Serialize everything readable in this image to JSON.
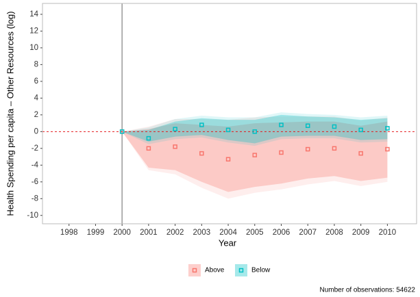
{
  "chart_data": {
    "type": "event-study",
    "y_label": "Health Spending per capita – Other Resources (log)",
    "x_label": "Year",
    "caption": "Number of observations: 54622",
    "x": [
      2000,
      2001,
      2002,
      2003,
      2004,
      2005,
      2006,
      2007,
      2008,
      2009,
      2010
    ],
    "xlim": [
      1997,
      2011.1
    ],
    "ylim": [
      -11,
      15.3
    ],
    "xticks": [
      1998,
      1999,
      2000,
      2001,
      2002,
      2003,
      2004,
      2005,
      2006,
      2007,
      2008,
      2009,
      2010
    ],
    "yticks": [
      -10,
      -8,
      -6,
      -4,
      -2,
      0,
      2,
      4,
      6,
      8,
      10,
      12,
      14
    ],
    "vline": 2000,
    "hline": 0,
    "grid": false,
    "legend": "bottom",
    "series": [
      {
        "name": "Above",
        "color": "#f8766d",
        "values": [
          0,
          -2.0,
          -1.8,
          -2.6,
          -3.3,
          -2.8,
          -2.5,
          -2.1,
          -2.0,
          -2.6,
          -2.1
        ],
        "ci_inner": {
          "lower": [
            0,
            -4.3,
            -4.6,
            -6.0,
            -7.2,
            -6.6,
            -6.2,
            -5.6,
            -5.3,
            -5.9,
            -5.5
          ],
          "upper": [
            0,
            0.3,
            1.0,
            0.8,
            0.6,
            1.0,
            1.1,
            1.2,
            1.2,
            0.7,
            1.2
          ]
        },
        "ci_outer": {
          "lower": [
            0,
            -4.6,
            -5.1,
            -6.7,
            -8.0,
            -7.3,
            -6.9,
            -6.3,
            -5.9,
            -6.5,
            -6.0
          ],
          "upper": [
            0,
            0.6,
            1.5,
            1.5,
            1.4,
            1.7,
            1.8,
            1.8,
            1.8,
            1.3,
            1.7
          ]
        }
      },
      {
        "name": "Below",
        "color": "#00bfc4",
        "values": [
          0,
          -0.8,
          0.3,
          0.8,
          0.2,
          0.0,
          0.8,
          0.7,
          0.6,
          0.2,
          0.4
        ],
        "ci_inner": {
          "lower": [
            0,
            -1.2,
            -0.6,
            -0.4,
            -1.0,
            -1.4,
            -0.6,
            -0.5,
            -0.5,
            -1.0,
            -0.9
          ],
          "upper": [
            0,
            0.2,
            1.2,
            1.6,
            1.4,
            1.4,
            2.0,
            1.8,
            1.7,
            1.4,
            1.6
          ]
        },
        "ci_outer": {
          "lower": [
            0,
            -1.5,
            -0.9,
            -0.7,
            -1.3,
            -1.7,
            -0.9,
            -0.8,
            -0.8,
            -1.3,
            -1.2
          ],
          "upper": [
            0,
            0.5,
            1.5,
            1.9,
            1.7,
            1.7,
            2.3,
            2.1,
            2.0,
            1.7,
            1.9
          ]
        }
      }
    ]
  }
}
